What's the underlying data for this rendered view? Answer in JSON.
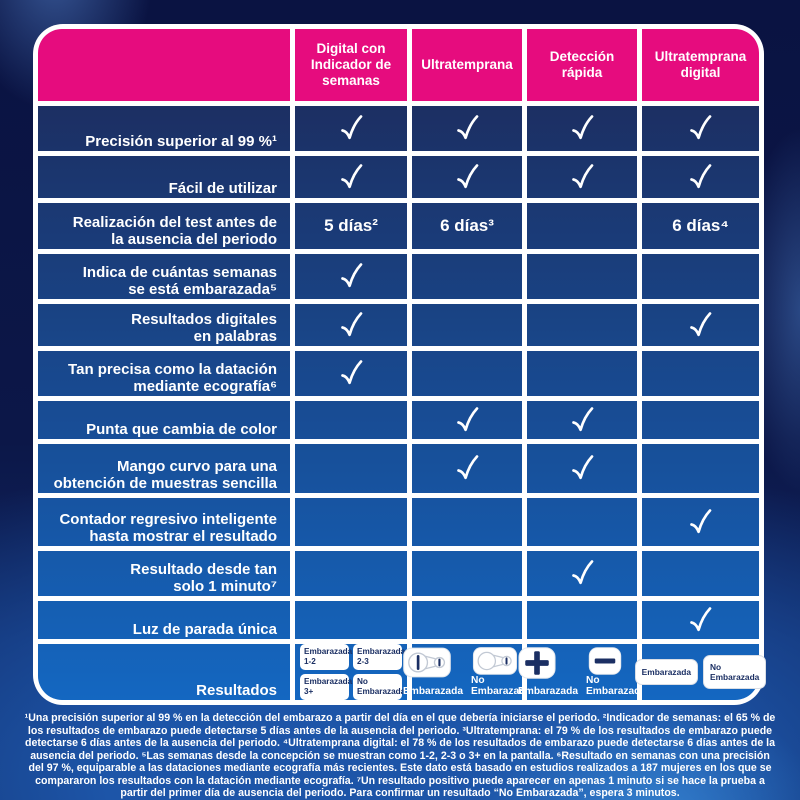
{
  "header": {
    "columns": [
      {
        "lines": [
          "Digital con",
          "Indicador de",
          "semanas"
        ]
      },
      {
        "lines": [
          "Ultratemprana"
        ]
      },
      {
        "lines": [
          "Detección",
          "rápida"
        ]
      },
      {
        "lines": [
          "Ultratemprana",
          "digital"
        ]
      }
    ]
  },
  "rows": [
    {
      "label_lines": [
        "Precisión superior al 99 %¹"
      ],
      "cells": [
        "check",
        "check",
        "check",
        "check"
      ]
    },
    {
      "label_lines": [
        "Fácil de utilizar"
      ],
      "cells": [
        "check",
        "check",
        "check",
        "check"
      ]
    },
    {
      "label_lines": [
        "Realización del test antes de",
        "la ausencia del periodo"
      ],
      "cells": [
        "5 días²",
        "6 días³",
        "",
        "6 días⁴"
      ]
    },
    {
      "label_lines": [
        "Indica de cuántas semanas",
        "se está embarazada⁵"
      ],
      "cells": [
        "check",
        "",
        "",
        ""
      ]
    },
    {
      "label_lines": [
        "Resultados digitales",
        "en palabras"
      ],
      "cells": [
        "check",
        "",
        "",
        "check"
      ]
    },
    {
      "label_lines": [
        "Tan precisa como la datación",
        "mediante ecografía⁶"
      ],
      "cells": [
        "check",
        "",
        "",
        ""
      ]
    },
    {
      "label_lines": [
        "Punta que cambia de color"
      ],
      "cells": [
        "",
        "check",
        "check",
        ""
      ]
    },
    {
      "label_lines": [
        "Mango curvo para una",
        "obtención de muestras sencilla"
      ],
      "cells": [
        "",
        "check",
        "check",
        ""
      ]
    },
    {
      "label_lines": [
        "Contador regresivo inteligente",
        "hasta mostrar el resultado"
      ],
      "cells": [
        "",
        "",
        "",
        "check"
      ]
    },
    {
      "label_lines": [
        "Resultado desde tan",
        "solo 1 minuto⁷"
      ],
      "cells": [
        "",
        "",
        "check",
        ""
      ]
    },
    {
      "label_lines": [
        "Luz de parada única"
      ],
      "cells": [
        "",
        "",
        "",
        "check"
      ]
    }
  ],
  "results": {
    "label": "Resultados",
    "week_indicator_boxes": [
      {
        "lines": [
          "Embarazada",
          "1-2"
        ]
      },
      {
        "lines": [
          "Embarazada",
          "2-3"
        ]
      },
      {
        "lines": [
          "Embarazada",
          "3+"
        ]
      },
      {
        "lines": [
          "No",
          "Embarazada"
        ]
      }
    ],
    "ultra_early_results": [
      {
        "label_lines": [
          "Embarazada"
        ],
        "window": "line"
      },
      {
        "label_lines": [
          "No",
          "Embarazada"
        ],
        "window": "empty"
      }
    ],
    "rapid_detection_results": [
      {
        "label_lines": [
          "Embarazada"
        ],
        "sign": "plus"
      },
      {
        "label_lines": [
          "No",
          "Embarazada"
        ],
        "sign": "minus"
      }
    ],
    "ultra_digital_boxes": [
      {
        "lines": [
          "Embarazada"
        ]
      },
      {
        "lines": [
          "No",
          "Embarazada"
        ]
      }
    ]
  },
  "footnotes": "¹Una precisión superior al 99 % en la detección del embarazo a partir del día en el que debería iniciarse el periodo. ²Indicador de semanas: el 65 % de los resultados de embarazo puede detectarse 5 días antes de la ausencia del periodo. ³Ultratemprana: el 79 % de los resultados de embarazo puede detectarse 6 días antes de la ausencia del periodo. ⁴Ultratemprana digital: el 78 % de los resultados de embarazo puede detectarse 6 días antes de la ausencia del periodo. ⁵Las semanas desde la concepción se muestran como 1-2, 2-3 o 3+ en la pantalla. ⁶Resultado en semanas con una precisión del 97 %, equiparable a las dataciones mediante ecografía más recientes. Este dato está basado en estudios realizados a 187 mujeres en los que se compararon los resultados con la datación mediante ecografía. ⁷Un resultado positivo puede aparecer en apenas 1 minuto si se hace la prueba a partir del primer día de ausencia del periodo. Para confirmar un resultado “No Embarazada”, espera 3 minutos.",
  "colors": {
    "header_pink": "#e60c7e",
    "cell_navy_top": "#1c2f63",
    "cell_blue_bottom": "#1467c1",
    "grid_white": "#ffffff",
    "result_box_text": "#1b2f63",
    "background_dark": "#0a1342",
    "background_band": "#1d55a8"
  }
}
